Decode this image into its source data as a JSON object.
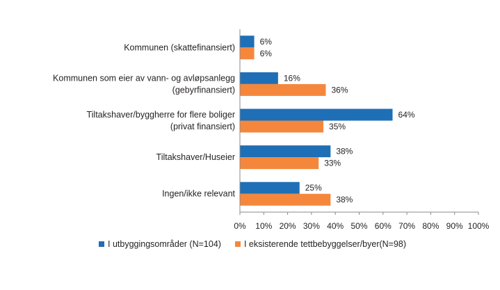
{
  "chart_data": {
    "type": "bar",
    "orientation": "horizontal",
    "title": "",
    "xlabel": "",
    "ylabel": "",
    "categories": [
      [
        "Kommunen (skattefinansiert)"
      ],
      [
        "Kommunen som eier av vann- og avløpsanlegg",
        "(gebyrfinansiert)"
      ],
      [
        "Tiltakshaver/byggherre for flere boliger",
        "(privat finansiert)"
      ],
      [
        "Tiltakshaver/Huseier"
      ],
      [
        "Ingen/ikke relevant"
      ]
    ],
    "series": [
      {
        "name": "I utbyggingsområder (N=104)",
        "color": "#1f6fb6",
        "values": [
          6,
          16,
          64,
          38,
          25
        ]
      },
      {
        "name": "I eksisterende tettbebyggelser/byer(N=98)",
        "color": "#f5873c",
        "values": [
          6,
          36,
          35,
          33,
          38
        ]
      }
    ],
    "xlim": [
      0,
      100
    ],
    "xticks": [
      0,
      10,
      20,
      30,
      40,
      50,
      60,
      70,
      80,
      90,
      100
    ],
    "tick_suffix": "%",
    "value_suffix": "%",
    "grid": false,
    "legend_position": "bottom"
  }
}
